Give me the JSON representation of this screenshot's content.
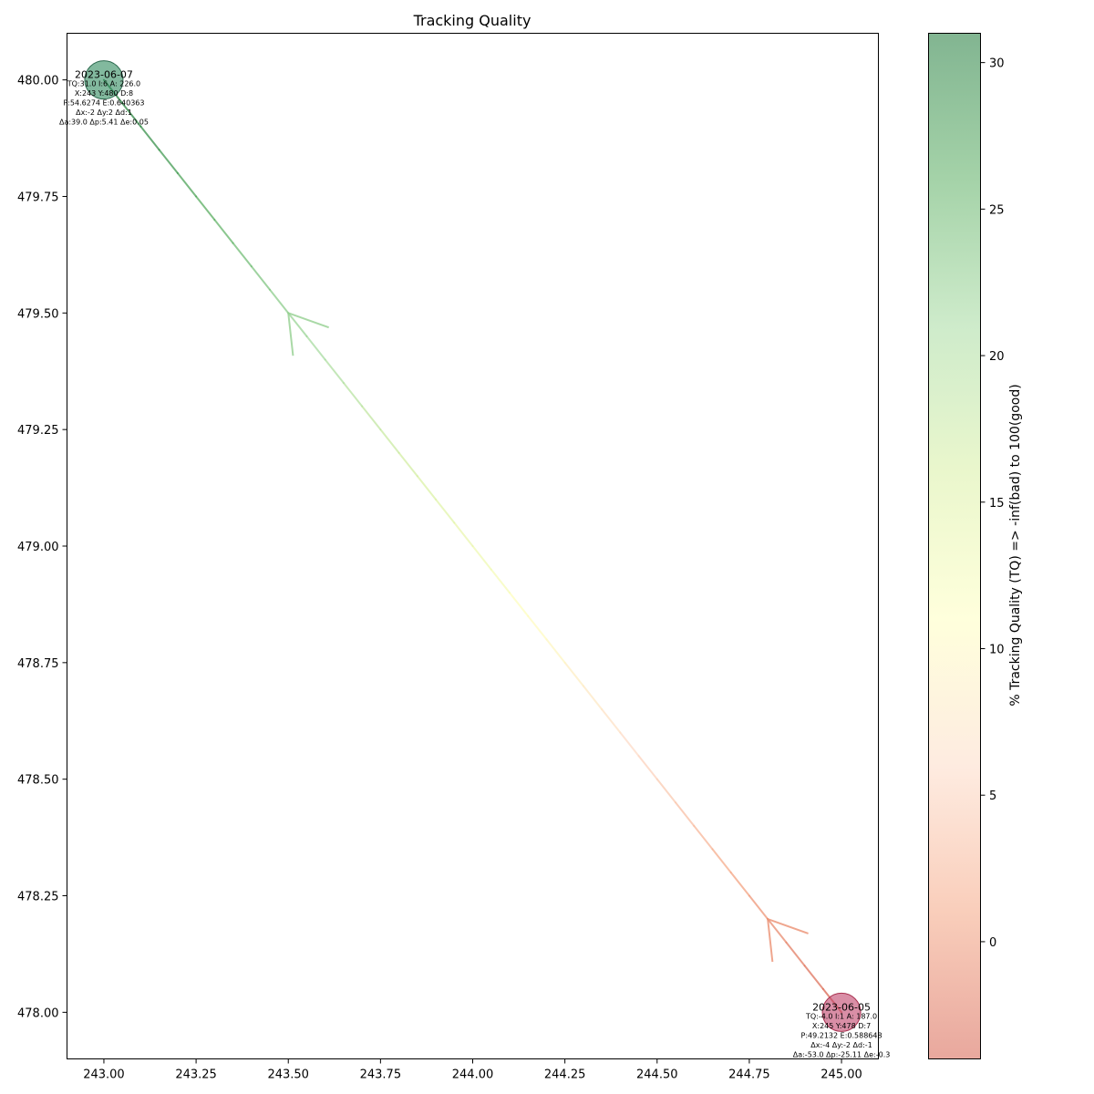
{
  "chart_data": {
    "type": "scatter",
    "title": "Tracking Quality",
    "xlabel": "",
    "ylabel": "",
    "xlim": [
      242.9,
      245.1
    ],
    "ylim": [
      477.9,
      480.1
    ],
    "x_ticks": [
      243.0,
      243.25,
      243.5,
      243.75,
      244.0,
      244.25,
      244.5,
      244.75,
      245.0
    ],
    "x_tick_labels": [
      "243.00",
      "243.25",
      "243.50",
      "243.75",
      "244.00",
      "244.25",
      "244.50",
      "244.75",
      "245.00"
    ],
    "y_ticks": [
      478.0,
      478.25,
      478.5,
      478.75,
      479.0,
      479.25,
      479.5,
      479.75,
      480.0
    ],
    "y_tick_labels": [
      "478.00",
      "478.25",
      "478.50",
      "478.75",
      "479.00",
      "479.25",
      "479.50",
      "479.75",
      "480.00"
    ],
    "grid": false,
    "points": [
      {
        "date": "2023-06-07",
        "x": 243,
        "y": 480,
        "tq": 31.0,
        "lines": [
          "TQ:31.0 I:6 A: 226.0",
          "X:243 Y:480 D:8",
          "P:54.6274 E:0.640363",
          "Δx:-2 Δy:2 Δd:1",
          "Δa:39.0 Δp:5.41 Δe:0.05"
        ]
      },
      {
        "date": "2023-06-05",
        "x": 245,
        "y": 478,
        "tq": -4.0,
        "lines": [
          "TQ:-4.0 I:1 A: 187.0",
          "X:245 Y:478 D:7",
          "P:49.2132 E:0.588648",
          "Δx:-4 Δy:-2 Δd:-1",
          "Δa:-53.0 Δp:-25.11 Δe:-0.3"
        ]
      }
    ],
    "colorbar": {
      "label": "% Tracking Quality (TQ) => -inf(bad) to 100(good)",
      "range": [
        -4,
        31
      ],
      "ticks": [
        0,
        5,
        10,
        15,
        20,
        25,
        30
      ],
      "colormap": [
        "#d6604d",
        "#f4a582",
        "#fddbc7",
        "#ffffbf",
        "#d9f0a3",
        "#a6dba0",
        "#5aae61",
        "#1b7837"
      ]
    }
  }
}
